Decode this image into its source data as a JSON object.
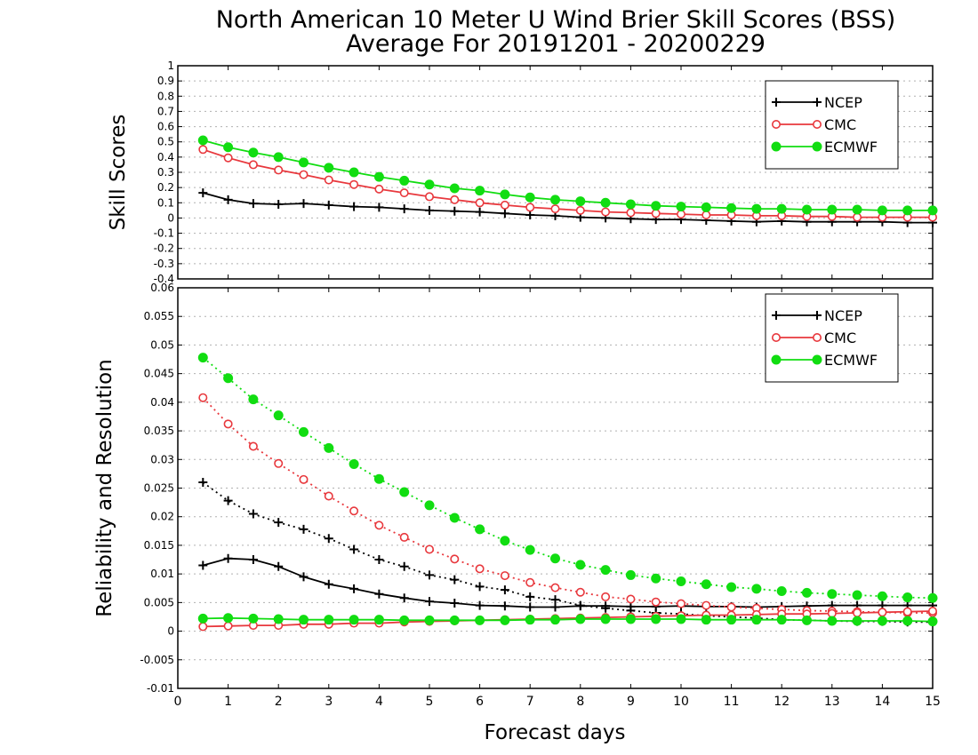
{
  "title": {
    "line1": "North American 10 Meter U Wind Brier Skill Scores (BSS)",
    "line2": "Average For 20191201 - 20200229"
  },
  "xlabel": "Forecast days",
  "colors": {
    "NCEP": "#000000",
    "CMC": "#e8383d",
    "ECMWF": "#11dd11",
    "grid": "#b0b0b0"
  },
  "chart_data": [
    {
      "type": "line",
      "panel": "top",
      "ylabel": "Skill Scores",
      "xlim": [
        0,
        15
      ],
      "ylim": [
        -0.4,
        1
      ],
      "x_ticks": [
        0,
        1,
        2,
        3,
        4,
        5,
        6,
        7,
        8,
        9,
        10,
        11,
        12,
        13,
        14,
        15
      ],
      "y_ticks": [
        -0.4,
        -0.3,
        -0.2,
        -0.1,
        0,
        0.1,
        0.2,
        0.3,
        0.4,
        0.5,
        0.6,
        0.7,
        0.8,
        0.9,
        1
      ],
      "y_tick_labels": [
        "-0.4",
        "-0.3",
        "-0.2",
        "-0.1",
        "0",
        "0.1",
        "0.2",
        "0.3",
        "0.4",
        "0.5",
        "0.6",
        "0.7",
        "0.8",
        "0.9",
        "1"
      ],
      "grid": true,
      "legend_position": "top-right",
      "x": [
        0.5,
        1,
        1.5,
        2,
        2.5,
        3,
        3.5,
        4,
        4.5,
        5,
        5.5,
        6,
        6.5,
        7,
        7.5,
        8,
        8.5,
        9,
        9.5,
        10,
        10.5,
        11,
        11.5,
        12,
        12.5,
        13,
        13.5,
        14,
        14.5,
        15
      ],
      "series": [
        {
          "name": "NCEP",
          "marker": "plus",
          "line": "solid",
          "values": [
            0.165,
            0.12,
            0.095,
            0.09,
            0.095,
            0.085,
            0.075,
            0.07,
            0.06,
            0.05,
            0.045,
            0.04,
            0.03,
            0.02,
            0.015,
            0.005,
            0.0,
            -0.005,
            -0.01,
            -0.01,
            -0.015,
            -0.02,
            -0.025,
            -0.02,
            -0.025,
            -0.025,
            -0.025,
            -0.025,
            -0.03,
            -0.03
          ]
        },
        {
          "name": "CMC",
          "marker": "open-circle",
          "line": "solid",
          "values": [
            0.45,
            0.395,
            0.35,
            0.315,
            0.285,
            0.25,
            0.22,
            0.19,
            0.165,
            0.14,
            0.12,
            0.1,
            0.085,
            0.07,
            0.06,
            0.05,
            0.04,
            0.035,
            0.03,
            0.025,
            0.02,
            0.02,
            0.015,
            0.015,
            0.01,
            0.01,
            0.005,
            0.005,
            0.005,
            0.005
          ]
        },
        {
          "name": "ECMWF",
          "marker": "filled-circle",
          "line": "solid",
          "values": [
            0.51,
            0.465,
            0.43,
            0.4,
            0.365,
            0.33,
            0.3,
            0.27,
            0.245,
            0.22,
            0.195,
            0.18,
            0.155,
            0.135,
            0.12,
            0.11,
            0.1,
            0.09,
            0.08,
            0.075,
            0.07,
            0.065,
            0.06,
            0.06,
            0.055,
            0.055,
            0.055,
            0.05,
            0.05,
            0.05
          ]
        }
      ]
    },
    {
      "type": "line",
      "panel": "bottom",
      "ylabel": "Reliability and Resolution",
      "xlim": [
        0,
        15
      ],
      "ylim": [
        -0.01,
        0.06
      ],
      "x_ticks": [
        0,
        1,
        2,
        3,
        4,
        5,
        6,
        7,
        8,
        9,
        10,
        11,
        12,
        13,
        14,
        15
      ],
      "y_ticks": [
        -0.01,
        -0.005,
        0,
        0.005,
        0.01,
        0.015,
        0.02,
        0.025,
        0.03,
        0.035,
        0.04,
        0.045,
        0.05,
        0.055,
        0.06
      ],
      "y_tick_labels": [
        "-0.01",
        "-0.005",
        "0",
        "0.005",
        "0.01",
        "0.015",
        "0.02",
        "0.025",
        "0.03",
        "0.035",
        "0.04",
        "0.045",
        "0.05",
        "0.055",
        "0.06"
      ],
      "grid": true,
      "legend_position": "top-right",
      "x": [
        0.5,
        1,
        1.5,
        2,
        2.5,
        3,
        3.5,
        4,
        4.5,
        5,
        5.5,
        6,
        6.5,
        7,
        7.5,
        8,
        8.5,
        9,
        9.5,
        10,
        10.5,
        11,
        11.5,
        12,
        12.5,
        13,
        13.5,
        14,
        14.5,
        15
      ],
      "series": [
        {
          "name": "NCEP",
          "group": "resolution",
          "marker": "plus",
          "line": "dotted",
          "values": [
            0.026,
            0.0228,
            0.0205,
            0.019,
            0.0178,
            0.0162,
            0.0143,
            0.0125,
            0.0113,
            0.0098,
            0.009,
            0.0078,
            0.0072,
            0.006,
            0.0055,
            0.0045,
            0.004,
            0.0036,
            0.0032,
            0.003,
            0.0027,
            0.0025,
            0.0023,
            0.002,
            0.0019,
            0.0018,
            0.0017,
            0.0017,
            0.0016,
            0.0016
          ]
        },
        {
          "name": "NCEP",
          "group": "reliability",
          "marker": "plus",
          "line": "solid",
          "values": [
            0.0115,
            0.0127,
            0.0125,
            0.0113,
            0.0095,
            0.0082,
            0.0074,
            0.0065,
            0.0058,
            0.0052,
            0.0049,
            0.0045,
            0.0044,
            0.0042,
            0.0042,
            0.0044,
            0.0044,
            0.0043,
            0.0043,
            0.0044,
            0.0043,
            0.0043,
            0.0042,
            0.0043,
            0.0044,
            0.0045,
            0.0045,
            0.0045,
            0.0045,
            0.0045
          ]
        },
        {
          "name": "CMC",
          "group": "resolution",
          "marker": "open-circle",
          "line": "dotted",
          "values": [
            0.0408,
            0.0362,
            0.0323,
            0.0293,
            0.0265,
            0.0236,
            0.021,
            0.0185,
            0.0164,
            0.0143,
            0.0126,
            0.0109,
            0.0097,
            0.0085,
            0.0076,
            0.0068,
            0.006,
            0.0056,
            0.0051,
            0.0048,
            0.0045,
            0.0042,
            0.004,
            0.0038,
            0.0036,
            0.0035,
            0.0034,
            0.0033,
            0.0032,
            0.0032
          ]
        },
        {
          "name": "CMC",
          "group": "reliability",
          "marker": "open-circle",
          "line": "solid",
          "values": [
            0.0008,
            0.0009,
            0.001,
            0.001,
            0.0012,
            0.0012,
            0.0014,
            0.0014,
            0.0016,
            0.0017,
            0.0018,
            0.0019,
            0.002,
            0.0021,
            0.0022,
            0.0023,
            0.0024,
            0.0025,
            0.0026,
            0.0027,
            0.0028,
            0.0028,
            0.0029,
            0.003,
            0.003,
            0.0031,
            0.0032,
            0.0033,
            0.0034,
            0.0035
          ]
        },
        {
          "name": "ECMWF",
          "group": "resolution",
          "marker": "filled-circle",
          "line": "dotted",
          "values": [
            0.0478,
            0.0442,
            0.0405,
            0.0377,
            0.0348,
            0.032,
            0.0292,
            0.0266,
            0.0243,
            0.022,
            0.0198,
            0.0178,
            0.0158,
            0.0142,
            0.0127,
            0.0116,
            0.0107,
            0.0098,
            0.0092,
            0.0087,
            0.0082,
            0.0077,
            0.0074,
            0.007,
            0.0067,
            0.0065,
            0.0063,
            0.0061,
            0.0059,
            0.0058
          ]
        },
        {
          "name": "ECMWF",
          "group": "reliability",
          "marker": "filled-circle",
          "line": "solid",
          "values": [
            0.0022,
            0.0023,
            0.0022,
            0.0021,
            0.002,
            0.002,
            0.002,
            0.002,
            0.0019,
            0.0019,
            0.0019,
            0.0019,
            0.0019,
            0.002,
            0.002,
            0.0021,
            0.0021,
            0.0021,
            0.0021,
            0.0021,
            0.002,
            0.002,
            0.002,
            0.002,
            0.0019,
            0.0018,
            0.0018,
            0.0018,
            0.0018,
            0.0017
          ]
        }
      ]
    }
  ]
}
